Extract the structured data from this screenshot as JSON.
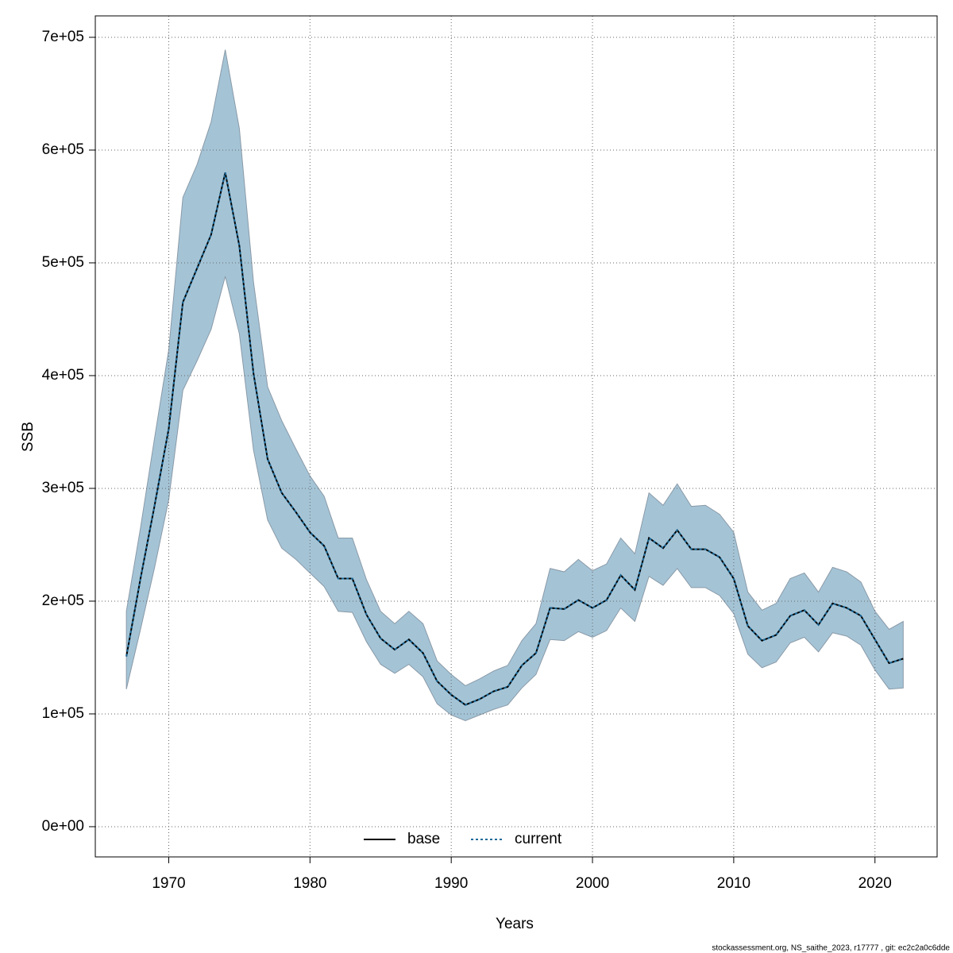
{
  "chart_data": {
    "type": "line",
    "xlabel": "Years",
    "ylabel": "SSB",
    "footnote": "stockassessment.org, NS_saithe_2023, r17777 , git: ec2c2a0c6dde",
    "x": [
      1967,
      1968,
      1969,
      1970,
      1971,
      1972,
      1973,
      1974,
      1975,
      1976,
      1977,
      1978,
      1979,
      1980,
      1981,
      1982,
      1983,
      1984,
      1985,
      1986,
      1987,
      1988,
      1989,
      1990,
      1991,
      1992,
      1993,
      1994,
      1995,
      1996,
      1997,
      1998,
      1999,
      2000,
      2001,
      2002,
      2003,
      2004,
      2005,
      2006,
      2007,
      2008,
      2009,
      2010,
      2011,
      2012,
      2013,
      2014,
      2015,
      2016,
      2017,
      2018,
      2019,
      2020,
      2021,
      2022
    ],
    "band": {
      "color": "#a4c4d6",
      "edge": "#8a9aa8",
      "lower": [
        122000,
        175000,
        230000,
        290000,
        387000,
        413000,
        441000,
        488000,
        437000,
        334000,
        272000,
        247000,
        237000,
        225000,
        213000,
        191000,
        190000,
        164000,
        144000,
        136000,
        144000,
        133000,
        109000,
        99000,
        94000,
        99000,
        104000,
        108000,
        123000,
        135000,
        166000,
        165000,
        173000,
        168000,
        174000,
        194000,
        182000,
        222000,
        214000,
        229000,
        212000,
        212000,
        205000,
        189000,
        153000,
        141000,
        146000,
        163000,
        168000,
        155000,
        172000,
        169000,
        161000,
        139000,
        122000,
        123000
      ],
      "upper": [
        191000,
        265000,
        345000,
        423000,
        558000,
        587000,
        625000,
        689000,
        619000,
        483000,
        390000,
        360000,
        335000,
        311000,
        293000,
        256000,
        256000,
        219000,
        191000,
        180000,
        191000,
        180000,
        147000,
        135000,
        125000,
        131000,
        138000,
        143000,
        165000,
        180000,
        229000,
        226000,
        237000,
        227000,
        233000,
        256000,
        242000,
        296000,
        285000,
        304000,
        284000,
        285000,
        277000,
        261000,
        208000,
        192000,
        198000,
        220000,
        225000,
        208000,
        230000,
        226000,
        217000,
        191000,
        175000,
        182000
      ]
    },
    "series": [
      {
        "name": "base",
        "color": "#000000",
        "dash": false,
        "values": [
          151000,
          220000,
          285000,
          353000,
          465000,
          495000,
          525000,
          580000,
          515000,
          402000,
          326000,
          296000,
          279000,
          261000,
          249000,
          220000,
          220000,
          188000,
          167000,
          157000,
          166000,
          154000,
          129000,
          117000,
          108000,
          113000,
          120000,
          124000,
          143000,
          154000,
          194000,
          193000,
          201000,
          194000,
          201000,
          223000,
          210000,
          256000,
          247000,
          263000,
          246000,
          246000,
          239000,
          220000,
          178000,
          165000,
          170000,
          187000,
          192000,
          179000,
          198000,
          194000,
          187000,
          166000,
          145000,
          149000
        ]
      },
      {
        "name": "current",
        "color": "#1a6a9a",
        "dash": true,
        "values": [
          151000,
          220000,
          285000,
          353000,
          465000,
          495000,
          525000,
          580000,
          515000,
          402000,
          326000,
          296000,
          279000,
          261000,
          249000,
          220000,
          220000,
          188000,
          167000,
          157000,
          166000,
          154000,
          129000,
          117000,
          108000,
          113000,
          120000,
          124000,
          143000,
          154000,
          194000,
          193000,
          201000,
          194000,
          201000,
          223000,
          210000,
          256000,
          247000,
          263000,
          246000,
          246000,
          239000,
          220000,
          178000,
          165000,
          170000,
          187000,
          192000,
          179000,
          198000,
          194000,
          187000,
          166000,
          145000,
          149000
        ]
      }
    ],
    "xlim": [
      1964.8,
      2024.4
    ],
    "ylim": [
      -26800,
      719000
    ],
    "xticks": [
      1970,
      1980,
      1990,
      2000,
      2010,
      2020
    ],
    "yticks": [
      {
        "value": 0,
        "label": "0e+00"
      },
      {
        "value": 100000,
        "label": "1e+05"
      },
      {
        "value": 200000,
        "label": "2e+05"
      },
      {
        "value": 300000,
        "label": "3e+05"
      },
      {
        "value": 400000,
        "label": "4e+05"
      },
      {
        "value": 500000,
        "label": "5e+05"
      },
      {
        "value": 600000,
        "label": "6e+05"
      },
      {
        "value": 700000,
        "label": "7e+05"
      }
    ],
    "grid": true,
    "legend": "bottom"
  }
}
